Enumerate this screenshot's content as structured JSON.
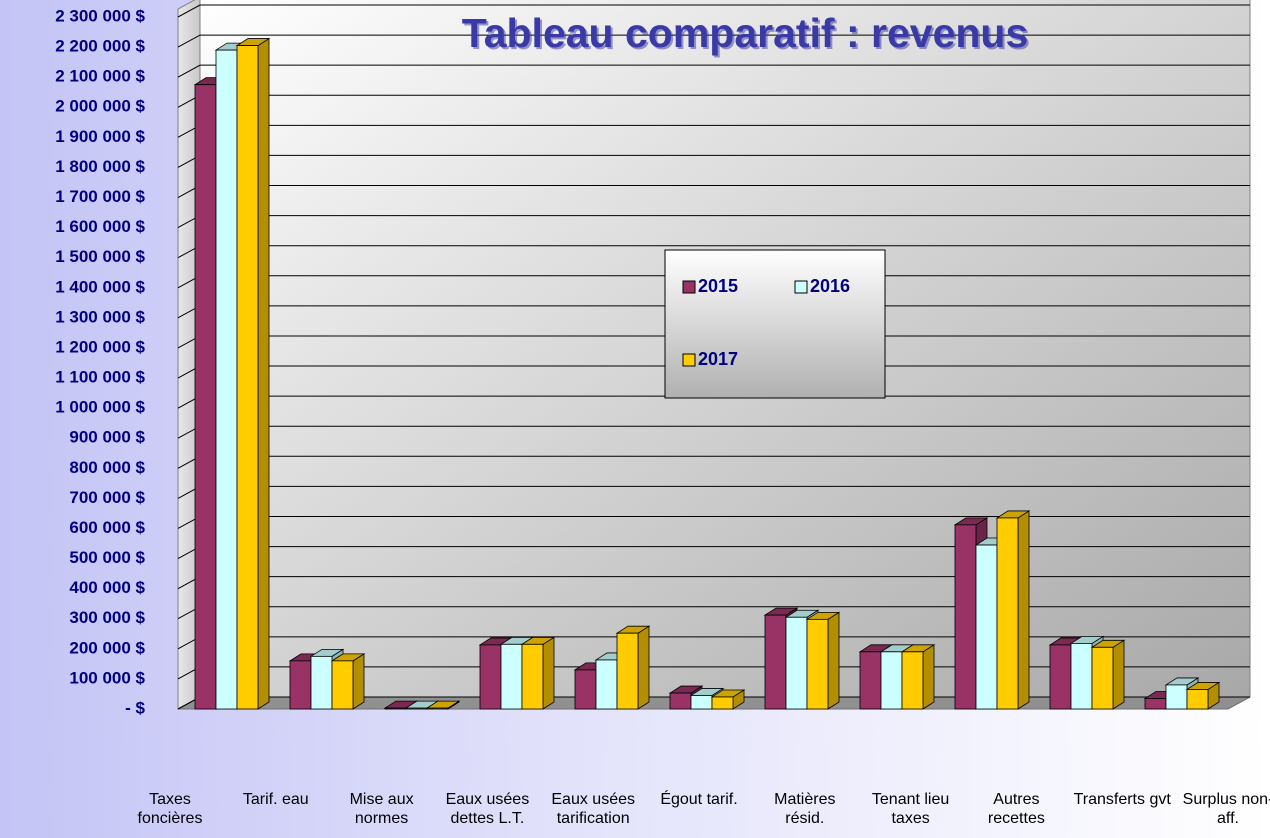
{
  "chart_data": {
    "type": "bar3d",
    "title": "Tableau comparatif : revenus",
    "categories": [
      "Taxes foncières",
      "Tarif. eau",
      "Mise aux normes",
      "Eaux usées dettes L.T.",
      "Eaux usées tarification",
      "Égout tarif.",
      "Matières résid.",
      "Tenant lieu taxes",
      "Autres recettes",
      "Transferts gvt",
      "Surplus non-aff."
    ],
    "series": [
      {
        "name": "2015",
        "color": "#993366",
        "values": [
          2075000,
          160000,
          3000,
          213000,
          130000,
          53000,
          312000,
          190000,
          612000,
          213000,
          35000
        ]
      },
      {
        "name": "2016",
        "color": "#ccffff",
        "values": [
          2190000,
          175000,
          3000,
          215000,
          163000,
          45000,
          305000,
          190000,
          545000,
          218000,
          80000
        ]
      },
      {
        "name": "2017",
        "color": "#ffcc00",
        "values": [
          2205000,
          160000,
          3000,
          215000,
          252000,
          40000,
          298000,
          190000,
          635000,
          205000,
          65000
        ]
      }
    ],
    "ylim": [
      0,
      2300000
    ],
    "yticks": [
      {
        "value": 0,
        "label": "-  $"
      },
      {
        "value": 100000,
        "label": "100 000 $"
      },
      {
        "value": 200000,
        "label": "200 000 $"
      },
      {
        "value": 300000,
        "label": "300 000 $"
      },
      {
        "value": 400000,
        "label": "400 000 $"
      },
      {
        "value": 500000,
        "label": "500 000 $"
      },
      {
        "value": 600000,
        "label": "600 000 $"
      },
      {
        "value": 700000,
        "label": "700 000 $"
      },
      {
        "value": 800000,
        "label": "800 000 $"
      },
      {
        "value": 900000,
        "label": "900 000 $"
      },
      {
        "value": 1000000,
        "label": "1 000 000 $"
      },
      {
        "value": 1100000,
        "label": "1 100 000 $"
      },
      {
        "value": 1200000,
        "label": "1 200 000 $"
      },
      {
        "value": 1300000,
        "label": "1 300 000 $"
      },
      {
        "value": 1400000,
        "label": "1 400 000 $"
      },
      {
        "value": 1500000,
        "label": "1 500 000 $"
      },
      {
        "value": 1600000,
        "label": "1 600 000 $"
      },
      {
        "value": 1700000,
        "label": "1 700 000 $"
      },
      {
        "value": 1800000,
        "label": "1 800 000 $"
      },
      {
        "value": 1900000,
        "label": "1 900 000 $"
      },
      {
        "value": 2000000,
        "label": "2 000 000 $"
      },
      {
        "value": 2100000,
        "label": "2 100 000 $"
      },
      {
        "value": 2200000,
        "label": "2 200 000 $"
      },
      {
        "value": 2300000,
        "label": "2 300 000 $"
      }
    ],
    "grid": true
  }
}
